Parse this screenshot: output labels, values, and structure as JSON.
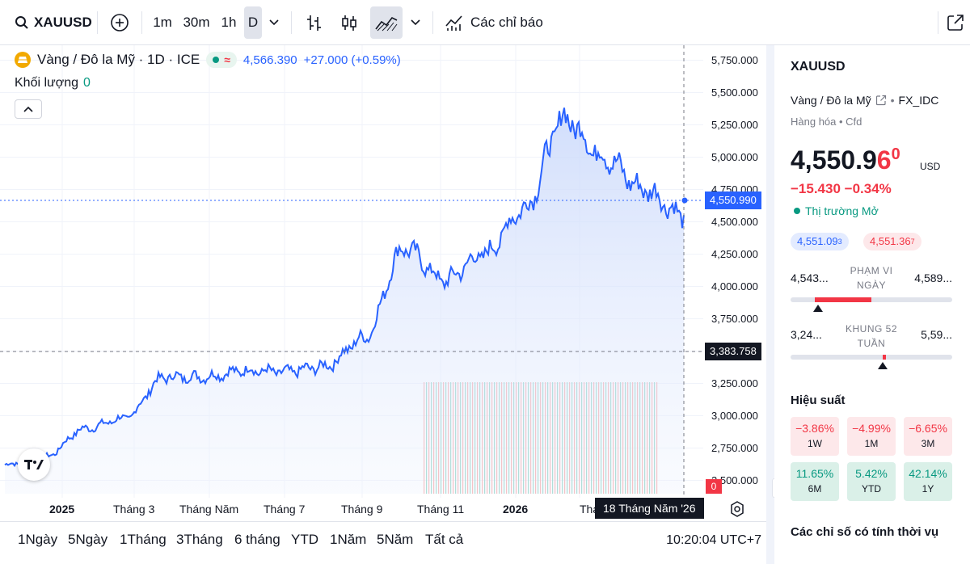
{
  "toolbar": {
    "symbol": "XAUUSD",
    "intervals": [
      "1m",
      "30m",
      "1h",
      "D"
    ],
    "active_interval": "D",
    "indicators_label": "Các chỉ báo"
  },
  "legend": {
    "title": "Vàng / Đô la Mỹ · 1D · ICE",
    "approx_symbol": "≈",
    "price": "4,566.390",
    "change": "+27.000 (+0.59%)",
    "volume_label": "Khối lượng",
    "volume_value": "0"
  },
  "price_axis": {
    "ticks": [
      "5,750.000",
      "5,500.000",
      "5,250.000",
      "5,000.000",
      "4,750.000",
      "4,500.000",
      "4,250.000",
      "4,000.000",
      "3,750.000",
      "3,500.000",
      "3,250.000",
      "3,000.000",
      "2,750.000",
      "2,500.000"
    ],
    "last_price_tag": "4,550.990",
    "crosshair_price_tag": "3,383.758",
    "red_marker_label": "0"
  },
  "time_axis": {
    "ticks": [
      {
        "label": "2025",
        "bold": true
      },
      {
        "label": "Tháng 3",
        "bold": false
      },
      {
        "label": "Tháng Năm",
        "bold": false
      },
      {
        "label": "Tháng 7",
        "bold": false
      },
      {
        "label": "Tháng 9",
        "bold": false
      },
      {
        "label": "Tháng 11",
        "bold": false
      },
      {
        "label": "2026",
        "bold": true
      },
      {
        "label": "Tháng",
        "bold": false
      }
    ],
    "crosshair_date": "18 Tháng Năm '26"
  },
  "bottom_bar": {
    "ranges": [
      "1Ngày",
      "5Ngày",
      "1Tháng",
      "3Tháng",
      "6 tháng",
      "YTD",
      "1Năm",
      "5Năm",
      "Tất cả"
    ],
    "clock": "10:20:04 UTC+7"
  },
  "panel": {
    "symbol": "XAUUSD",
    "description": "Vàng / Đô la Mỹ",
    "exchange": "FX_IDC",
    "category": "Hàng hóa • Cfd",
    "price_main": "4,550.9",
    "price_last_digit": "6",
    "price_sup": "0",
    "currency": "USD",
    "change": "−15.430  −0.34%",
    "market_status": "Thị trường Mở",
    "bid": "4,551.09",
    "bid_sup": "3",
    "ask": "4,551.36",
    "ask_sup": "7",
    "day_range": {
      "low": "4,543...",
      "high": "4,589...",
      "caption": "PHẠM VI NGÀY",
      "fill_start": 0.15,
      "fill_end": 0.5,
      "marker": 0.17
    },
    "week52_range": {
      "low": "3,24...",
      "high": "5,59...",
      "caption": "KHUNG 52 TUẦN",
      "fill_start": 0.57,
      "fill_end": 0.59,
      "marker": 0.57
    },
    "performance_title": "Hiệu suất",
    "performance": [
      {
        "value": "−3.86%",
        "label": "1W",
        "sign": "neg"
      },
      {
        "value": "−4.99%",
        "label": "1M",
        "sign": "neg"
      },
      {
        "value": "−6.65%",
        "label": "3M",
        "sign": "neg"
      },
      {
        "value": "11.65%",
        "label": "6M",
        "sign": "pos"
      },
      {
        "value": "5.42%",
        "label": "YTD",
        "sign": "pos"
      },
      {
        "value": "42.14%",
        "label": "1Y",
        "sign": "pos"
      }
    ],
    "seasonal_title": "Các chỉ số có tính thời vụ"
  },
  "colors": {
    "line": "#2962ff",
    "area_top": "#c9d8fb",
    "negative": "#f23645",
    "positive": "#089981"
  },
  "chart_data": {
    "type": "area",
    "ylim": [
      2400,
      5800
    ],
    "x": [
      "2024-12",
      "2025-01",
      "2025-02",
      "2025-03",
      "2025-04",
      "2025-05",
      "2025-06",
      "2025-07",
      "2025-08",
      "2025-09",
      "2025-10",
      "2025-11",
      "2025-12",
      "2026-01",
      "2026-02",
      "2026-03",
      "2026-04",
      "2026-05"
    ],
    "values": [
      2620,
      2680,
      2900,
      2980,
      3300,
      3300,
      3350,
      3340,
      3380,
      3600,
      4300,
      4050,
      4250,
      4600,
      5300,
      5000,
      4750,
      4551
    ],
    "series": [
      {
        "name": "XAUUSD",
        "values": [
          2620,
          2680,
          2900,
          2980,
          3300,
          3300,
          3350,
          3340,
          3380,
          3600,
          4300,
          4050,
          4250,
          4600,
          5300,
          5000,
          4750,
          4551
        ]
      }
    ]
  }
}
